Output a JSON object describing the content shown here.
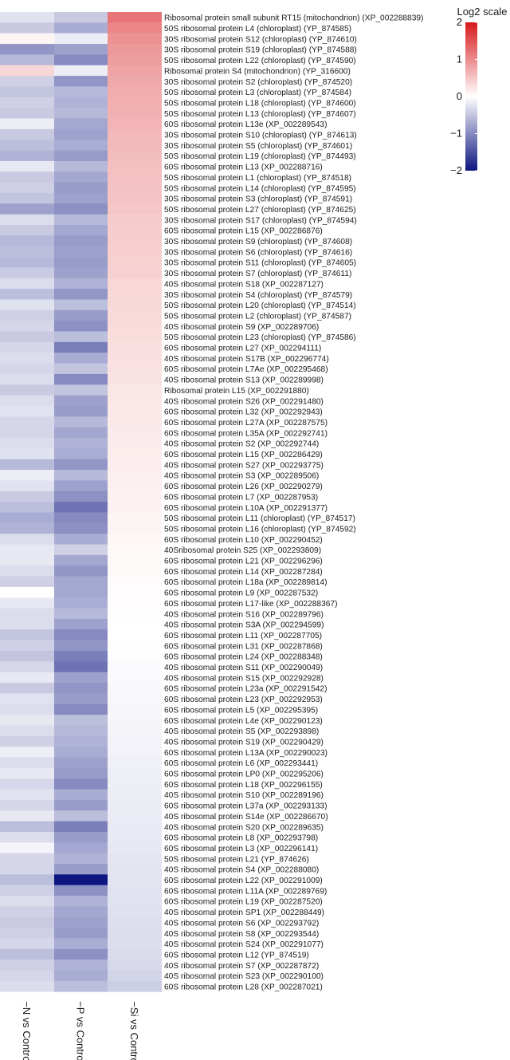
{
  "chart_data": {
    "type": "heatmap",
    "columns": [
      "−N vs Control",
      "−P vs Control",
      "−Si vs Control"
    ],
    "rows": [
      "Ribosomal protein small subunit RT15 (mitochondrion) (XP_002288839)",
      "50S ribosomal protein L4 (chloroplast) (YP_874585)",
      "30S ribosomal protein S12 (chloroplast) (YP_874610)",
      "30S ribosomal protein S19 (chloroplast) (YP_874588)",
      "50S ribosomal protein L22 (chloroplast) (YP_874590)",
      "Ribosomal protein S4 (mitochondrion) (YP_316600)",
      "30S ribosomal protein S2 (chloroplast) (YP_874520)",
      "50S ribosomal protein L3 (chloroplast) (YP_874584)",
      "50S ribosomal protein L18 (chloroplast) (YP_874600)",
      "50S ribosomal protein L13 (chloroplast) (YP_874607)",
      "60S ribosomal protein L13e (XP_002289543)",
      "30S ribosomal protein S10 (chloroplast) (YP_874613)",
      "30S ribosomal protein S5 (chloroplast) (YP_874601)",
      "50S ribosomal protein L19 (chloroplast) (YP_874493)",
      "60S ribosomal protein L13 (XP_002288716)",
      "50S ribosomal protein L1 (chloroplast) (YP_874518)",
      "50S ribosomal protein L14 (chloroplast) (YP_874595)",
      "30S ribosomal protein S3 (chloroplast) (YP_874591)",
      "50S ribosomal protein L27 (chloroplast) (YP_874625)",
      "30S ribosomal protein S17 (chloroplast) (YP_874594)",
      "60S ribosomal protein L15 (XP_002286876)",
      "30S ribosomal protein S9 (chloroplast) (YP_874608)",
      "30S ribosomal protein S6 (chloroplast) (YP_874616)",
      "30S ribosomal protein S11 (chloroplast) (YP_874605)",
      "30S ribosomal protein S7 (chloroplast) (YP_874611)",
      "40S ribosomal protein S18 (XP_002287127)",
      "30S ribosomal protein S4 (chloroplast) (YP_874579)",
      "50S ribosomal protein L20 (chloroplast) (YP_874514)",
      "50S ribosomal protein L2 (chloroplast) (YP_874587)",
      "40S ribosomal protein S9 (XP_002289706)",
      "50S ribosomal protein L23 (chloroplast) (YP_874586)",
      "60S ribosomal protein L27 (XP_002294111)",
      "40S ribosomal protein S17B (XP_002296774)",
      "60S ribosomal protein L7Ae (XP_002295468)",
      "40S ribosomal protein S13 (XP_002289998)",
      "Ribosomal protein L15 (XP_002291880)",
      "40S ribosomal protein S26 (XP_002291480)",
      "60S ribosomal protein L32 (XP_002292943)",
      "60S ribosomal protein L27A (XP_002287575)",
      "60S ribosomal protein L35A (XP_002292741)",
      "40S ribosomal protein S2 (XP_002292744)",
      "60S ribosomal protein L15 (XP_002286429)",
      "40S ribosomal protein S27 (XP_002293775)",
      "40S ribosomal protein S3 (XP_002289506)",
      "60S ribosomal protein L26 (XP_002290279)",
      "60S ribosomal protein L7 (XP_002287953)",
      "60S ribosomal protein L10A (XP_002291377)",
      "50S ribosomal protein L11 (chloroplast) (YP_874517)",
      "50S ribosomal protein L16 (chloroplast) (YP_874592)",
      "60S ribosomal protein L10 (XP_002290452)",
      "40Sribosomal protein S25 (XP_002293809)",
      "60S ribosomal protein L21 (XP_002296296)",
      "60S ribosomal protein L14 (XP_002287284)",
      "60S ribosomal protein L18a (XP_002289814)",
      "60S ribosomal protein L9 (XP_002287532)",
      "60S ribosomal protein L17-like (XP_002288367)",
      "40S ribosomal protein S16 (XP_002289796)",
      "40S ribosomal protein S3A (XP_002294599)",
      "60S ribosomal protein L11 (XP_002287705)",
      "60S ribosomal protein L31 (XP_002287868)",
      "60S ribosomal protein L24 (XP_002288348)",
      "40S ribosomal protein S11 (XP_002290049)",
      "40S ribosomal protein S15 (XP_002292928)",
      "60S ribosomal protein L23a (XP_002291542)",
      "60S ribosomal protein L23 (XP_002292953)",
      "60S ribosomal protein L5 (XP_002295395)",
      "60S ribosomal protein L4e (XP_002290123)",
      "40S ribosomal protein S5 (XP_002293898)",
      "40S ribosomal protein S19 (XP_002290429)",
      "60S ribosomal protein L13A (XP_002290023)",
      "60S ribosomal protein L6 (XP_002293441)",
      "60S ribosomal protein LP0 (XP_002295206)",
      "60S ribosomal protein L18 (XP_002296155)",
      "40S ribosomal protein S10 (XP_002289196)",
      "60S ribosomal protein L37a (XP_002293133)",
      "40S ribosomal protein S14e (XP_002286670)",
      "40S ribosomal protein S20 (XP_002289635)",
      "60S ribosomal protein L8 (XP_002293798)",
      "60S ribosomal protein L3 (XP_002296141)",
      "50S ribosomal protein L21 (YP_874626)",
      "40S ribosomal protein S4 (XP_002288080)",
      "60S ribosomal protein L22 (XP_002291009)",
      "60S ribosomal protein L11A (XP_002289769)",
      "60S ribosomal protein L19 (XP_002287520)",
      "40S ribosomal protein SP1 (XP_002288449)",
      "40S ribosomal protein S6 (XP_002293792)",
      "40S ribosomal protein S8 (XP_002293544)",
      "40S ribosomal protein S24 (XP_002291077)",
      "60S ribosomal protein L12 (YP_874519)",
      "40S ribosomal protein S7 (XP_002287872)",
      "40S ribosomal protein S23 (XP_002290100)",
      "60S ribosomal protein L28 (XP_002287021)"
    ],
    "values": [
      [
        -0.25,
        -0.45,
        1.2
      ],
      [
        -0.45,
        -0.7,
        1.05
      ],
      [
        0.1,
        -0.15,
        0.95
      ],
      [
        -0.9,
        -0.8,
        0.9
      ],
      [
        -0.6,
        -1.0,
        0.85
      ],
      [
        0.35,
        -0.15,
        0.8
      ],
      [
        -0.4,
        -0.9,
        0.75
      ],
      [
        -0.5,
        -0.6,
        0.72
      ],
      [
        -0.4,
        -0.65,
        0.7
      ],
      [
        -0.45,
        -0.6,
        0.68
      ],
      [
        -0.15,
        -0.75,
        0.65
      ],
      [
        -0.45,
        -0.8,
        0.62
      ],
      [
        -0.55,
        -0.7,
        0.6
      ],
      [
        -0.65,
        -0.85,
        0.58
      ],
      [
        -0.2,
        -0.6,
        0.56
      ],
      [
        -0.45,
        -0.75,
        0.55
      ],
      [
        -0.4,
        -0.85,
        0.53
      ],
      [
        -0.5,
        -0.8,
        0.52
      ],
      [
        -0.8,
        -0.95,
        0.5
      ],
      [
        -0.3,
        -0.6,
        0.45
      ],
      [
        -0.45,
        -0.75,
        0.44
      ],
      [
        -0.6,
        -0.85,
        0.43
      ],
      [
        -0.55,
        -0.8,
        0.42
      ],
      [
        -0.6,
        -0.85,
        0.41
      ],
      [
        -0.45,
        -0.8,
        0.4
      ],
      [
        -0.3,
        -0.65,
        0.35
      ],
      [
        -0.55,
        -0.9,
        0.34
      ],
      [
        -0.25,
        -0.55,
        0.33
      ],
      [
        -0.4,
        -0.85,
        0.32
      ],
      [
        -0.35,
        -0.95,
        0.31
      ],
      [
        -0.45,
        -0.55,
        0.3
      ],
      [
        -0.35,
        -1.1,
        0.28
      ],
      [
        -0.3,
        -0.7,
        0.27
      ],
      [
        -0.35,
        -0.5,
        0.26
      ],
      [
        -0.3,
        -1.0,
        0.25
      ],
      [
        -0.45,
        -0.5,
        0.22
      ],
      [
        -0.3,
        -0.8,
        0.21
      ],
      [
        -0.25,
        -0.85,
        0.2
      ],
      [
        -0.35,
        -0.6,
        0.19
      ],
      [
        -0.35,
        -0.75,
        0.18
      ],
      [
        -0.3,
        -0.65,
        0.17
      ],
      [
        -0.25,
        -0.7,
        0.16
      ],
      [
        -0.6,
        -0.9,
        0.15
      ],
      [
        -0.15,
        -0.6,
        0.14
      ],
      [
        -0.25,
        -0.8,
        0.13
      ],
      [
        -0.45,
        -0.95,
        0.12
      ],
      [
        -0.55,
        -1.2,
        0.11
      ],
      [
        -0.7,
        -1.0,
        0.1
      ],
      [
        -0.65,
        -0.95,
        0.09
      ],
      [
        -0.3,
        -0.7,
        0.07
      ],
      [
        -0.2,
        -0.4,
        0.06
      ],
      [
        -0.2,
        -0.75,
        0.05
      ],
      [
        -0.3,
        -0.9,
        0.04
      ],
      [
        -0.4,
        -0.75,
        0.03
      ],
      [
        0.0,
        -0.75,
        0.03
      ],
      [
        -0.2,
        -0.7,
        0.02
      ],
      [
        -0.3,
        -0.6,
        0.01
      ],
      [
        -0.3,
        -0.8,
        0.0
      ],
      [
        -0.5,
        -1.0,
        0.0
      ],
      [
        -0.4,
        -0.9,
        -0.01
      ],
      [
        -0.5,
        -1.1,
        -0.02
      ],
      [
        -0.35,
        -1.2,
        -0.03
      ],
      [
        -0.2,
        -0.8,
        -0.04
      ],
      [
        -0.45,
        -0.9,
        -0.05
      ],
      [
        -0.25,
        -0.85,
        -0.06
      ],
      [
        -0.3,
        -1.0,
        -0.07
      ],
      [
        -0.2,
        -0.55,
        -0.08
      ],
      [
        -0.3,
        -0.6,
        -0.09
      ],
      [
        -0.4,
        -0.65,
        -0.1
      ],
      [
        -0.15,
        -0.7,
        -0.11
      ],
      [
        -0.3,
        -0.8,
        -0.12
      ],
      [
        -0.2,
        -0.85,
        -0.13
      ],
      [
        -0.35,
        -1.0,
        -0.14
      ],
      [
        -0.25,
        -0.7,
        -0.15
      ],
      [
        -0.35,
        -0.85,
        -0.16
      ],
      [
        -0.2,
        -0.55,
        -0.17
      ],
      [
        -0.55,
        -1.1,
        -0.18
      ],
      [
        -0.3,
        -0.85,
        -0.19
      ],
      [
        -0.1,
        -0.75,
        -0.2
      ],
      [
        -0.35,
        -0.65,
        -0.21
      ],
      [
        -0.35,
        -0.85,
        -0.22
      ],
      [
        -0.55,
        -2.0,
        -0.23
      ],
      [
        -0.4,
        -0.95,
        -0.24
      ],
      [
        -0.3,
        -0.65,
        -0.25
      ],
      [
        -0.4,
        -0.75,
        -0.26
      ],
      [
        -0.45,
        -0.8,
        -0.27
      ],
      [
        -0.4,
        -0.85,
        -0.28
      ],
      [
        -0.35,
        -0.7,
        -0.29
      ],
      [
        -0.55,
        -0.95,
        -0.31
      ],
      [
        -0.4,
        -0.65,
        -0.33
      ],
      [
        -0.35,
        -0.7,
        -0.37
      ],
      [
        -0.3,
        -0.55,
        -0.42
      ]
    ],
    "legend": {
      "title": "Log2 scale",
      "min": -2,
      "max": 2,
      "ticks": [
        {
          "value": 2,
          "label": "2"
        },
        {
          "value": 1,
          "label": "1"
        },
        {
          "value": 0,
          "label": "0"
        },
        {
          "value": -1,
          "label": "−1"
        },
        {
          "value": -2,
          "label": "−2"
        }
      ],
      "placement": "top-right",
      "colors": {
        "low": "#0d1580",
        "mid": "#ffffff",
        "high": "#d7191c"
      }
    }
  }
}
